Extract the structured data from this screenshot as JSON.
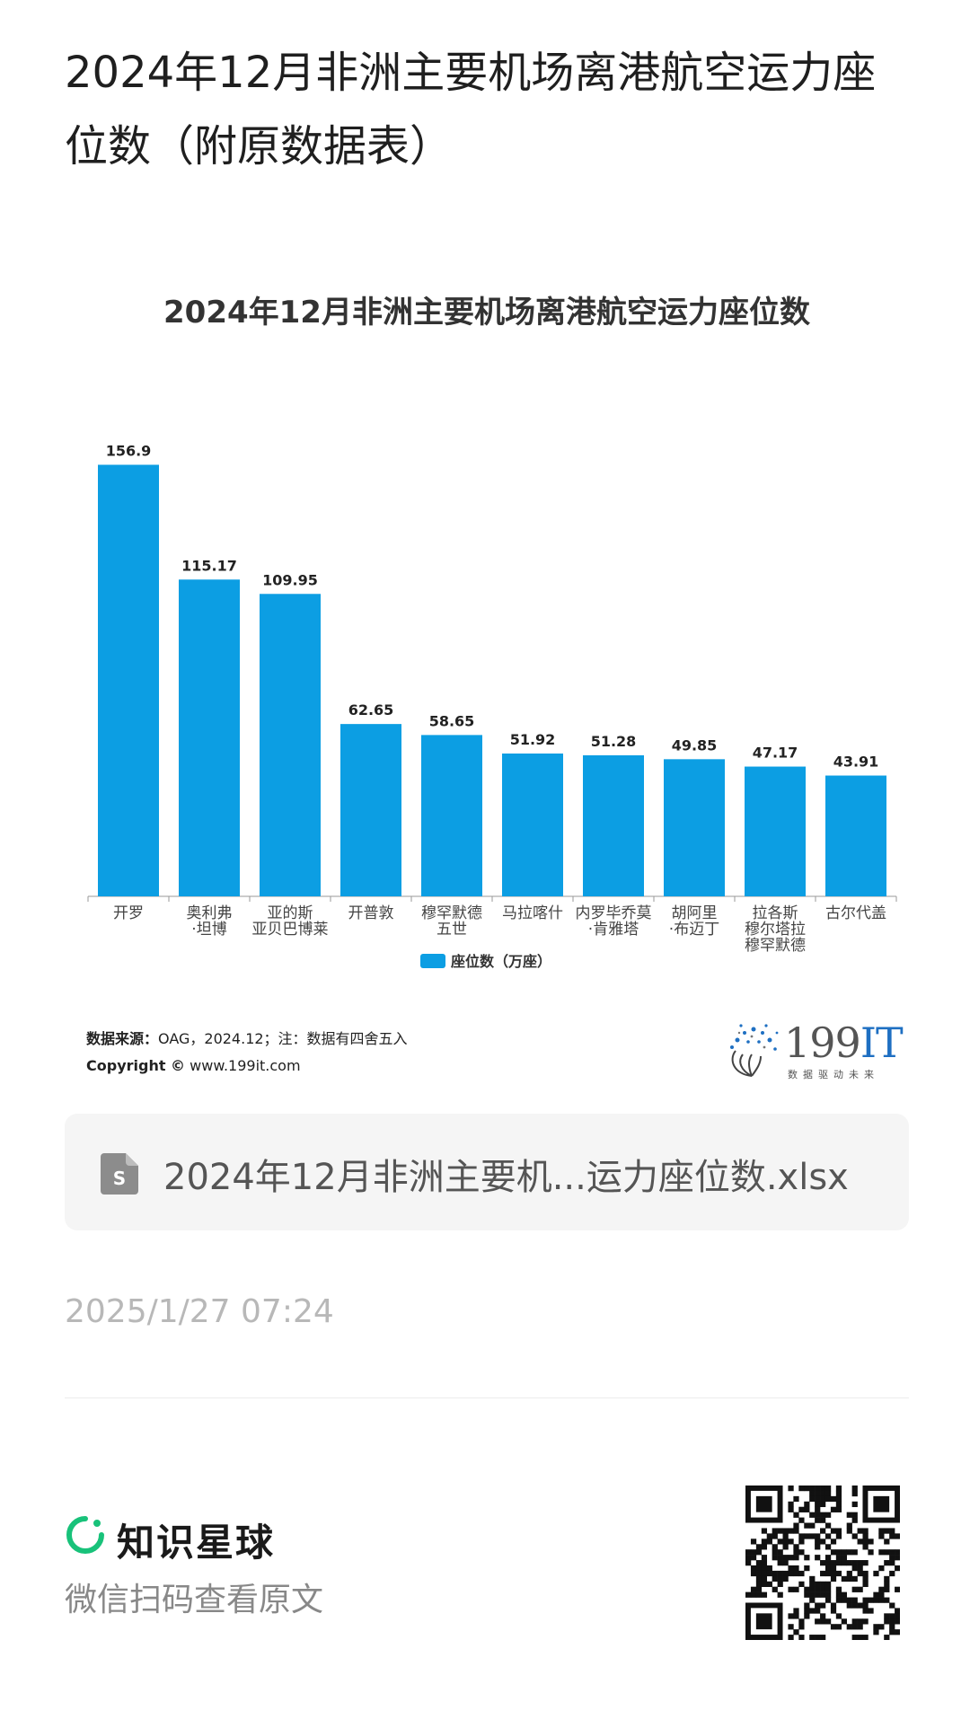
{
  "page": {
    "title": "2024年12月非洲主要机场离港航空运力座位数（附原数据表）"
  },
  "chart_card": {
    "source_label": "数据来源：",
    "source_text": "OAG，2024.12；注：数据有四舍五入",
    "copyright_label": "Copyright ©",
    "copyright_text": "www.199it.com",
    "logo_number": "199",
    "logo_it": "IT",
    "logo_tagline": "数据驱动未来"
  },
  "chart_data": {
    "type": "bar",
    "title": "2024年12月非洲主要机场离港航空运力座位数",
    "categories": [
      [
        "开罗"
      ],
      [
        "奥利弗",
        "·坦博"
      ],
      [
        "亚的斯",
        "亚贝巴博莱"
      ],
      [
        "开普敦"
      ],
      [
        "穆罕默德",
        "五世"
      ],
      [
        "马拉喀什"
      ],
      [
        "内罗毕乔莫",
        "·肯雅塔"
      ],
      [
        "胡阿里",
        "·布迈丁"
      ],
      [
        "拉各斯",
        "穆尔塔拉",
        "穆罕默德"
      ],
      [
        "古尔代盖"
      ]
    ],
    "series": [
      {
        "name": "座位数（万座）",
        "values": [
          156.9,
          115.17,
          109.95,
          62.65,
          58.65,
          51.92,
          51.28,
          49.85,
          47.17,
          43.91
        ],
        "labels": [
          "156.9",
          "115.17",
          "109.95",
          "62.65",
          "58.65",
          "51.92",
          "51.28",
          "49.85",
          "47.17",
          "43.91"
        ]
      }
    ],
    "ylim": [
      0,
      160
    ],
    "legend_position": "bottom",
    "grid": false,
    "color": "#0c9ee3"
  },
  "file": {
    "name": "2024年12月非洲主要机...运力座位数.xlsx",
    "icon": "spreadsheet-file-icon"
  },
  "timestamp": "2025/1/27 07:24",
  "footer": {
    "brand_name": "知识星球",
    "brand_icon": "planet-ring-icon",
    "scan_hint": "微信扫码查看原文",
    "qr_icon": "qr-code-icon"
  }
}
